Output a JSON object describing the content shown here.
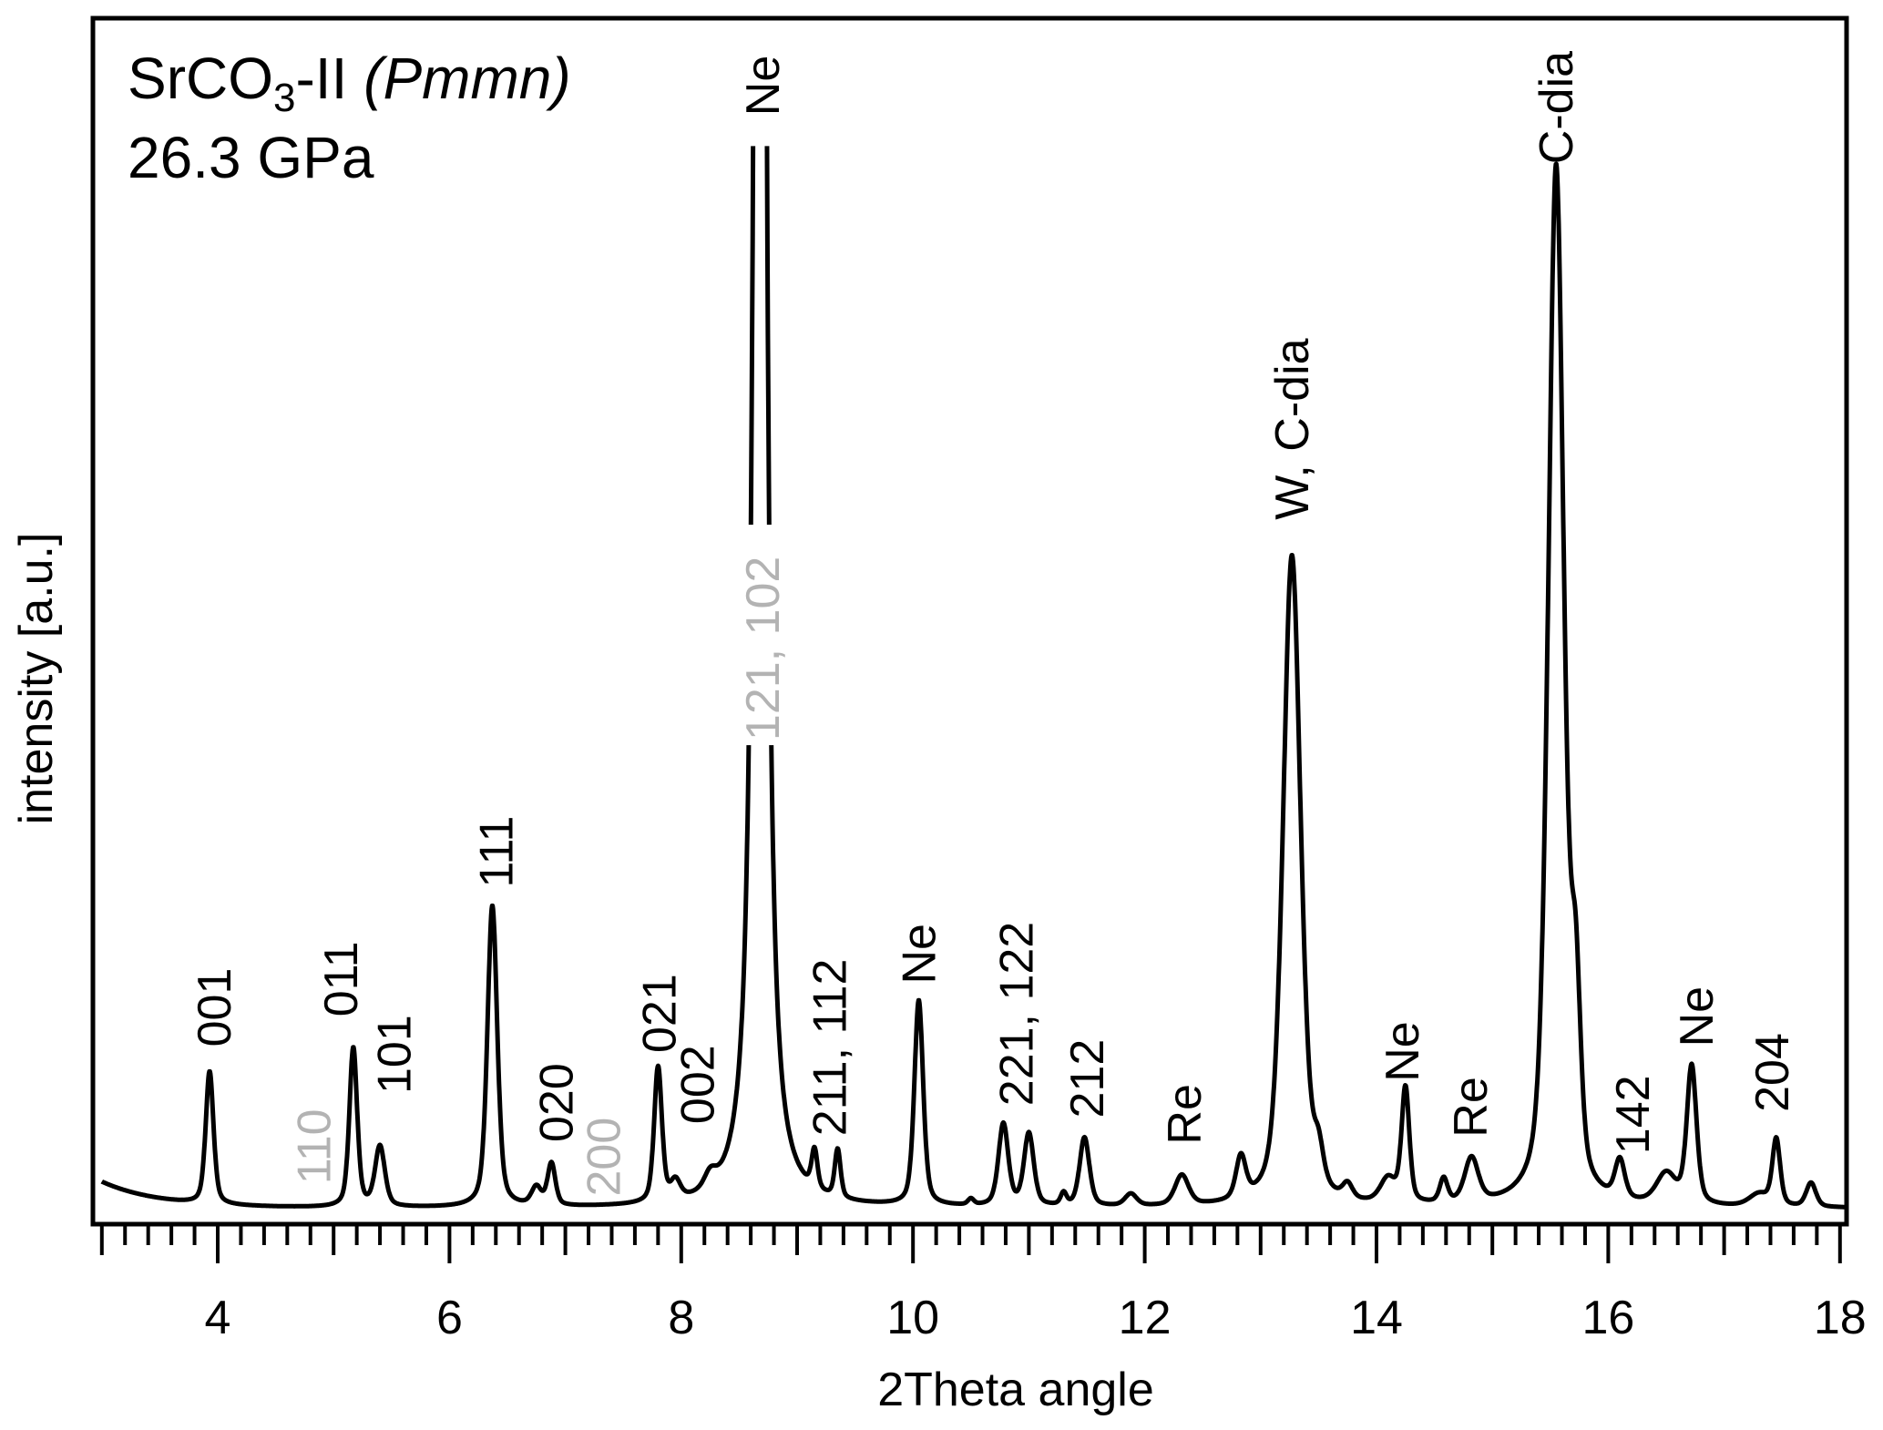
{
  "chart_data": {
    "type": "line",
    "title_lines": {
      "compound": "SrCO",
      "subscript": "3",
      "phase": "-II ",
      "space_group": "(Pmmn)",
      "pressure": "26.3 GPa"
    },
    "xlabel": "2Theta angle",
    "ylabel": "intensity [a.u.]",
    "xlim": [
      3,
      18.2
    ],
    "ylim": [
      0,
      100
    ],
    "x_ticks": [
      4,
      6,
      8,
      10,
      12,
      14,
      16,
      18
    ],
    "x_tick_labels": [
      "4",
      "6",
      "8",
      "10",
      "12",
      "14",
      "16",
      "18"
    ],
    "minor_tick_step": 0.2,
    "grid": false,
    "colors": {
      "line": "#000000",
      "label": "#000000",
      "gray_label": "#b3b3b3"
    },
    "background": {
      "base": 1.3,
      "decay_amp": 2.2,
      "decay_len": 0.5
    },
    "peaks": [
      {
        "x": 3.93,
        "h": 11,
        "w": 0.04
      },
      {
        "x": 5.17,
        "h": 13.2,
        "w": 0.04
      },
      {
        "x": 5.4,
        "h": 5,
        "w": 0.05
      },
      {
        "x": 6.37,
        "h": 25,
        "w": 0.05
      },
      {
        "x": 6.75,
        "h": 1.5,
        "w": 0.05
      },
      {
        "x": 6.88,
        "h": 3.5,
        "w": 0.04
      },
      {
        "x": 7.8,
        "h": 11.2,
        "w": 0.04
      },
      {
        "x": 7.95,
        "h": 1.5,
        "w": 0.05
      },
      {
        "x": 8.25,
        "h": 1.2,
        "w": 0.06
      },
      {
        "x": 8.68,
        "h": 445,
        "w": 0.03,
        "lorentz": true
      },
      {
        "x": 9.15,
        "h": 3.2,
        "w": 0.03
      },
      {
        "x": 9.35,
        "h": 4,
        "w": 0.03
      },
      {
        "x": 10.05,
        "h": 17,
        "w": 0.045
      },
      {
        "x": 10.5,
        "h": 0.5,
        "w": 0.03
      },
      {
        "x": 10.78,
        "h": 6.8,
        "w": 0.05
      },
      {
        "x": 11.0,
        "h": 6,
        "w": 0.05
      },
      {
        "x": 11.3,
        "h": 1,
        "w": 0.03
      },
      {
        "x": 11.48,
        "h": 5.7,
        "w": 0.05
      },
      {
        "x": 11.88,
        "h": 1,
        "w": 0.06
      },
      {
        "x": 12.32,
        "h": 2.5,
        "w": 0.07
      },
      {
        "x": 12.83,
        "h": 3.5,
        "w": 0.05
      },
      {
        "x": 13.27,
        "h": 54,
        "w": 0.09
      },
      {
        "x": 13.5,
        "h": 3,
        "w": 0.05
      },
      {
        "x": 13.75,
        "h": 1.2,
        "w": 0.05
      },
      {
        "x": 14.1,
        "h": 2,
        "w": 0.08
      },
      {
        "x": 14.25,
        "h": 9.5,
        "w": 0.04
      },
      {
        "x": 14.58,
        "h": 2,
        "w": 0.04
      },
      {
        "x": 14.82,
        "h": 3.7,
        "w": 0.07
      },
      {
        "x": 15.55,
        "h": 86,
        "w": 0.08
      },
      {
        "x": 15.72,
        "h": 15,
        "w": 0.05
      },
      {
        "x": 16.1,
        "h": 3.2,
        "w": 0.05
      },
      {
        "x": 16.5,
        "h": 2.5,
        "w": 0.1
      },
      {
        "x": 16.72,
        "h": 11.5,
        "w": 0.05
      },
      {
        "x": 17.3,
        "h": 1,
        "w": 0.1
      },
      {
        "x": 17.45,
        "h": 5.5,
        "w": 0.04
      },
      {
        "x": 17.75,
        "h": 2,
        "w": 0.05
      }
    ],
    "clip_top": 89.4,
    "annotations": [
      {
        "text": "001",
        "x": 3.97,
        "y": 14.7,
        "gray": false
      },
      {
        "text": "110",
        "x": 4.83,
        "y": 3.3,
        "gray": true
      },
      {
        "text": "011",
        "x": 5.06,
        "y": 17.2,
        "gray": false
      },
      {
        "text": "101",
        "x": 5.52,
        "y": 10.8,
        "gray": false
      },
      {
        "text": "111",
        "x": 6.4,
        "y": 27.9,
        "gray": false
      },
      {
        "text": "020",
        "x": 6.92,
        "y": 6.8,
        "gray": false
      },
      {
        "text": "200",
        "x": 7.33,
        "y": 2.3,
        "gray": true
      },
      {
        "text": "021",
        "x": 7.81,
        "y": 14.2,
        "gray": false
      },
      {
        "text": "002",
        "x": 8.14,
        "y": 8.3,
        "gray": false
      },
      {
        "text": "121, 102",
        "x": 8.7,
        "y": 40.1,
        "gray": true,
        "knockout": true
      },
      {
        "text": "Ne",
        "x": 8.7,
        "y": 91.9,
        "gray": false
      },
      {
        "text": "211, 112",
        "x": 9.28,
        "y": 7.3,
        "gray": false
      },
      {
        "text": "Ne",
        "x": 10.05,
        "y": 19.9,
        "gray": false
      },
      {
        "text": "221, 122",
        "x": 10.89,
        "y": 9.8,
        "gray": false
      },
      {
        "text": "212",
        "x": 11.5,
        "y": 8.8,
        "gray": false
      },
      {
        "text": "Re",
        "x": 12.34,
        "y": 6.6,
        "gray": false
      },
      {
        "text": "W, C-dia",
        "x": 13.27,
        "y": 58.4,
        "gray": false
      },
      {
        "text": "Ne",
        "x": 14.22,
        "y": 11.8,
        "gray": false
      },
      {
        "text": "Re",
        "x": 14.81,
        "y": 7.2,
        "gray": false
      },
      {
        "text": "C-dia",
        "x": 15.55,
        "y": 87.9,
        "gray": false
      },
      {
        "text": "142",
        "x": 16.21,
        "y": 5.8,
        "gray": false
      },
      {
        "text": "Ne",
        "x": 16.76,
        "y": 14.7,
        "gray": false
      },
      {
        "text": "204",
        "x": 17.41,
        "y": 9.3,
        "gray": false
      }
    ]
  }
}
